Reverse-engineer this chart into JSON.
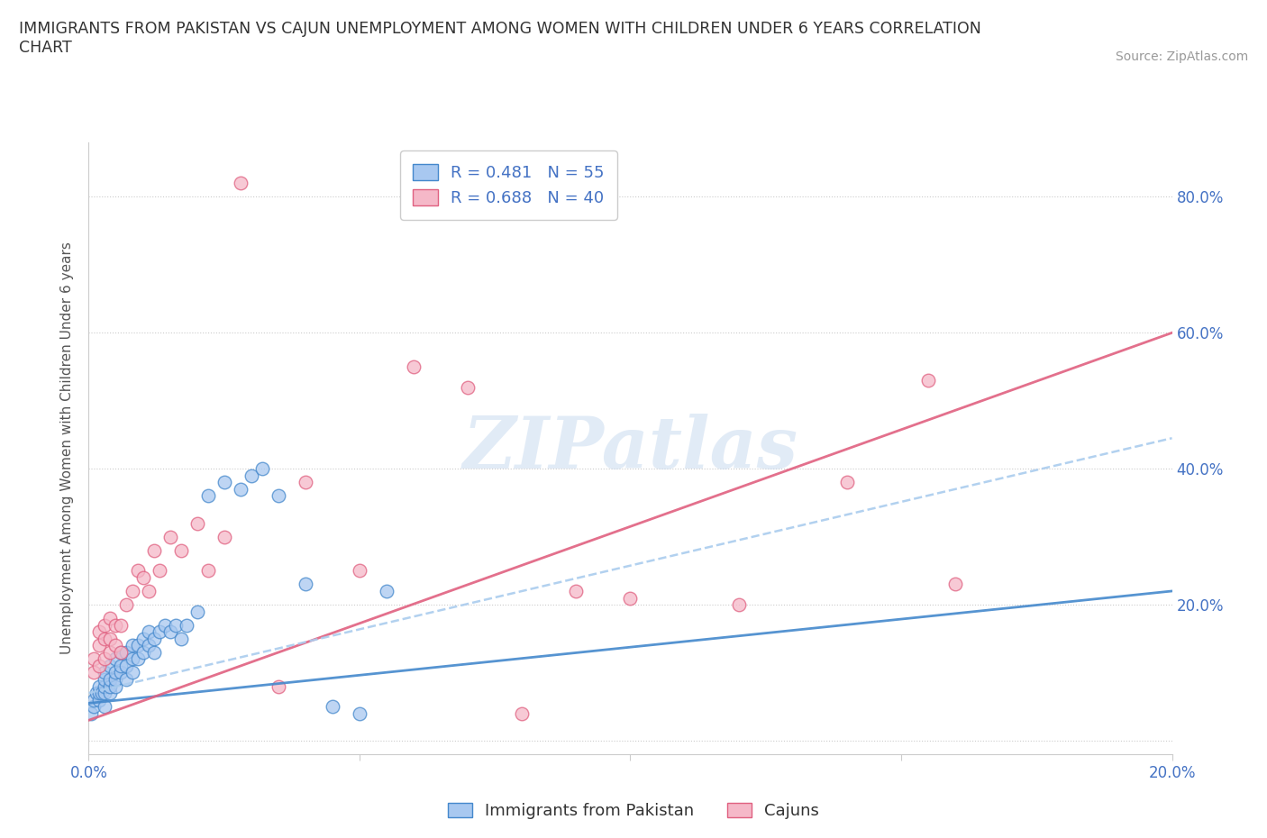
{
  "title": "IMMIGRANTS FROM PAKISTAN VS CAJUN UNEMPLOYMENT AMONG WOMEN WITH CHILDREN UNDER 6 YEARS CORRELATION\nCHART",
  "source": "Source: ZipAtlas.com",
  "ylabel": "Unemployment Among Women with Children Under 6 years",
  "legend1_label": "R = 0.481   N = 55",
  "legend2_label": "R = 0.688   N = 40",
  "legend_bottom1": "Immigrants from Pakistan",
  "legend_bottom2": "Cajuns",
  "blue_color": "#a8c8f0",
  "pink_color": "#f5b8c8",
  "trend_blue_color": "#4488cc",
  "trend_pink_color": "#e06080",
  "dash_color": "#aaccee",
  "watermark_color": "#c5d8ee",
  "watermark": "ZIPatlas",
  "xlim": [
    0.0,
    0.2
  ],
  "ylim": [
    -0.02,
    0.88
  ],
  "blue_scatter_x": [
    0.0005,
    0.001,
    0.001,
    0.0015,
    0.002,
    0.002,
    0.002,
    0.0025,
    0.003,
    0.003,
    0.003,
    0.003,
    0.003,
    0.004,
    0.004,
    0.004,
    0.004,
    0.005,
    0.005,
    0.005,
    0.005,
    0.006,
    0.006,
    0.006,
    0.007,
    0.007,
    0.007,
    0.008,
    0.008,
    0.008,
    0.009,
    0.009,
    0.01,
    0.01,
    0.011,
    0.011,
    0.012,
    0.012,
    0.013,
    0.014,
    0.015,
    0.016,
    0.017,
    0.018,
    0.02,
    0.022,
    0.025,
    0.028,
    0.03,
    0.032,
    0.035,
    0.04,
    0.045,
    0.05,
    0.055
  ],
  "blue_scatter_y": [
    0.04,
    0.05,
    0.06,
    0.07,
    0.06,
    0.07,
    0.08,
    0.07,
    0.05,
    0.07,
    0.08,
    0.09,
    0.1,
    0.07,
    0.08,
    0.09,
    0.11,
    0.08,
    0.09,
    0.1,
    0.12,
    0.1,
    0.11,
    0.13,
    0.09,
    0.11,
    0.13,
    0.1,
    0.12,
    0.14,
    0.12,
    0.14,
    0.13,
    0.15,
    0.14,
    0.16,
    0.13,
    0.15,
    0.16,
    0.17,
    0.16,
    0.17,
    0.15,
    0.17,
    0.19,
    0.36,
    0.38,
    0.37,
    0.39,
    0.4,
    0.36,
    0.23,
    0.05,
    0.04,
    0.22
  ],
  "pink_scatter_x": [
    0.001,
    0.001,
    0.002,
    0.002,
    0.002,
    0.003,
    0.003,
    0.003,
    0.004,
    0.004,
    0.004,
    0.005,
    0.005,
    0.006,
    0.006,
    0.007,
    0.008,
    0.009,
    0.01,
    0.011,
    0.012,
    0.013,
    0.015,
    0.017,
    0.02,
    0.022,
    0.025,
    0.028,
    0.035,
    0.04,
    0.05,
    0.06,
    0.07,
    0.08,
    0.09,
    0.1,
    0.12,
    0.14,
    0.155,
    0.16
  ],
  "pink_scatter_y": [
    0.1,
    0.12,
    0.11,
    0.14,
    0.16,
    0.12,
    0.15,
    0.17,
    0.13,
    0.15,
    0.18,
    0.14,
    0.17,
    0.13,
    0.17,
    0.2,
    0.22,
    0.25,
    0.24,
    0.22,
    0.28,
    0.25,
    0.3,
    0.28,
    0.32,
    0.25,
    0.3,
    0.82,
    0.08,
    0.38,
    0.25,
    0.55,
    0.52,
    0.04,
    0.22,
    0.21,
    0.2,
    0.38,
    0.53,
    0.23
  ],
  "blue_trend_x": [
    0.0,
    0.2
  ],
  "blue_trend_y": [
    0.055,
    0.22
  ],
  "pink_trend_x": [
    0.0,
    0.2
  ],
  "pink_trend_y": [
    0.03,
    0.6
  ],
  "dash_trend_x": [
    0.0,
    0.2
  ],
  "dash_trend_y": [
    0.07,
    0.445
  ]
}
